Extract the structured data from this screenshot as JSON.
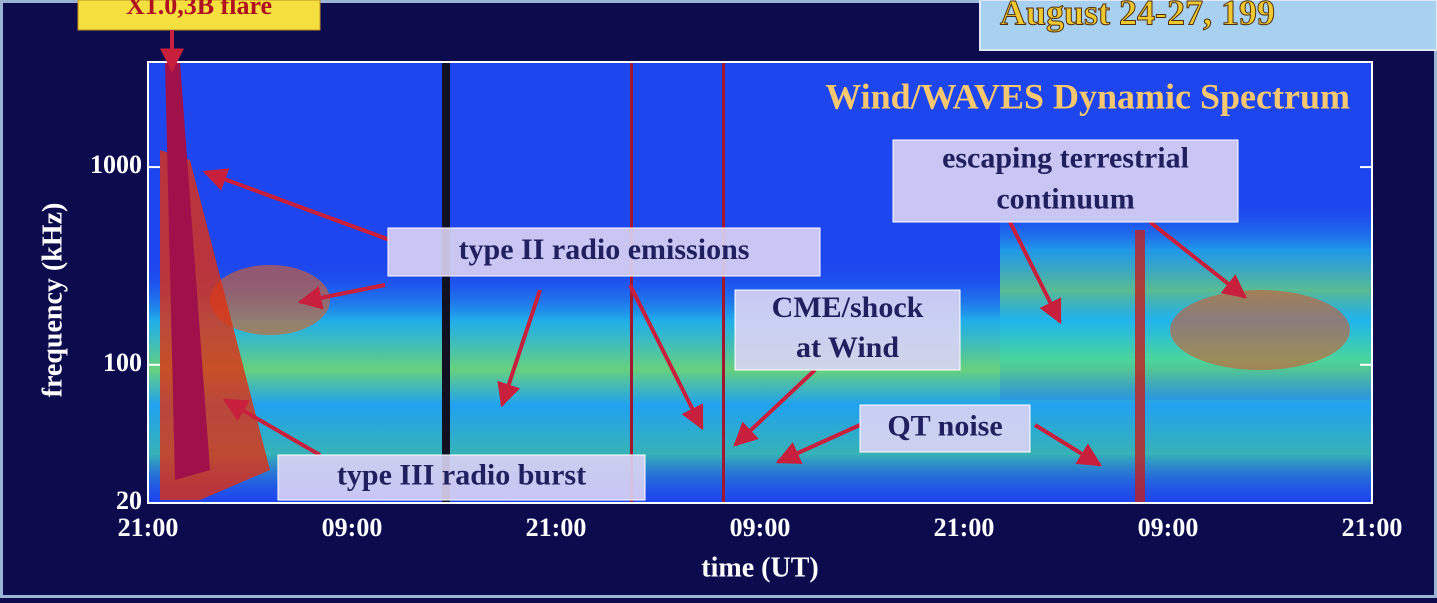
{
  "chart_data": {
    "type": "spectrogram",
    "title": "August 24-27, 199",
    "subtitle": "Wind/WAVES Dynamic Spectrum",
    "flare_label": "X1.0,3B flare",
    "x_label": "time (UT)",
    "y_label": "frequency (kHz)",
    "y_log_scale": true,
    "ylim": [
      20,
      3400
    ],
    "yticks": [
      20,
      100,
      1000
    ],
    "categories": [
      "21:00",
      "09:00",
      "21:00",
      "09:00",
      "21:00",
      "09:00",
      "21:00"
    ],
    "annotations": [
      {
        "lines": [
          "type II radio emissions"
        ]
      },
      {
        "lines": [
          "type III radio burst"
        ]
      },
      {
        "lines": [
          "CME/shock",
          "at Wind"
        ]
      },
      {
        "lines": [
          "QT noise"
        ]
      },
      {
        "lines": [
          "escaping terrestrial",
          "continuum"
        ]
      }
    ]
  }
}
